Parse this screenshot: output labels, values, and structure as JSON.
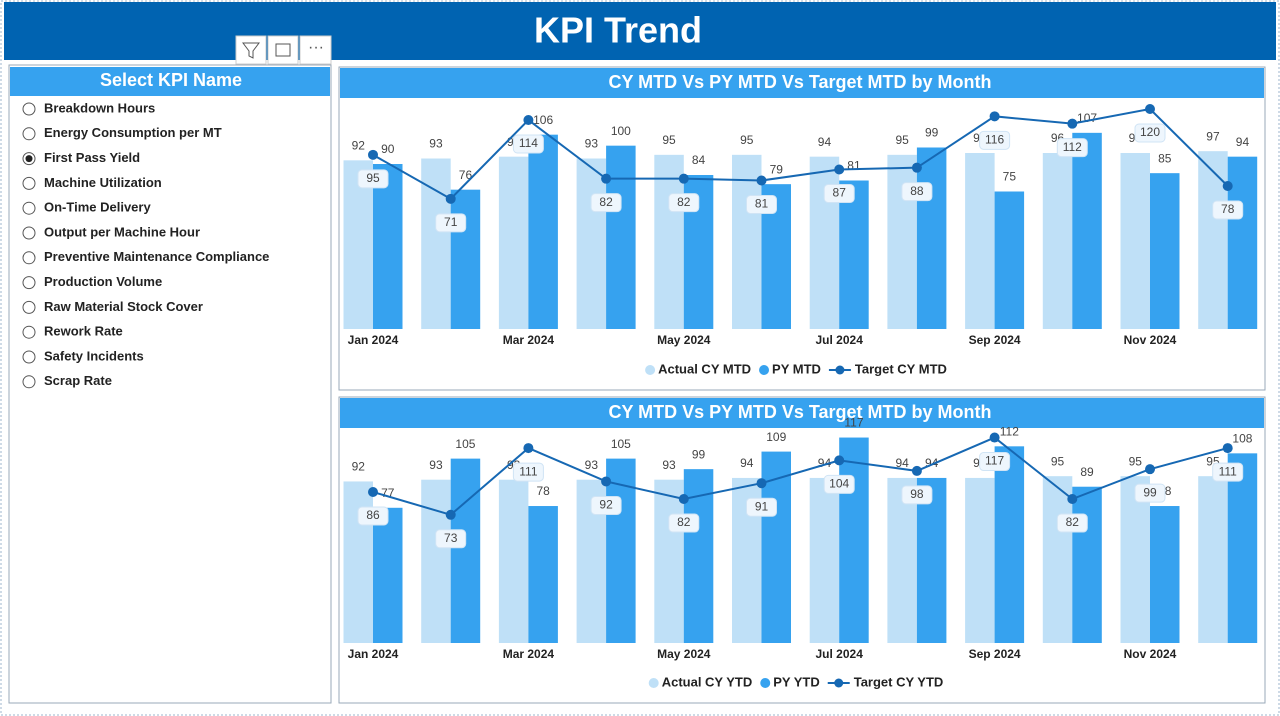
{
  "header": {
    "title": "KPI Trend"
  },
  "slicer": {
    "title": "Select KPI Name",
    "selected": 2,
    "items": [
      "Breakdown Hours",
      "Energy Consumption per MT",
      "First Pass Yield",
      "Machine Utilization",
      "On-Time Delivery",
      "Output per Machine Hour",
      "Preventive Maintenance Compliance",
      "Production Volume",
      "Raw Material Stock Cover",
      "Rework Rate",
      "Safety Incidents",
      "Scrap Rate"
    ]
  },
  "chart_data": [
    {
      "type": "combo",
      "title": "CY MTD Vs PY MTD Vs Target MTD by Month",
      "categories": [
        "Jan 2024",
        null,
        "Mar 2024",
        null,
        "May 2024",
        null,
        "Jul 2024",
        null,
        "Sep 2024",
        null,
        "Nov 2024",
        null
      ],
      "series": [
        {
          "name": "Actual CY MTD",
          "type": "bar",
          "color": "#bfe0f7",
          "values": [
            92,
            93,
            94,
            93,
            95,
            95,
            94,
            95,
            96,
            96,
            96,
            97
          ]
        },
        {
          "name": "PY MTD",
          "type": "bar",
          "color": "#36a2ef",
          "values": [
            90,
            76,
            106,
            100,
            84,
            79,
            81,
            99,
            75,
            107,
            85,
            94
          ]
        },
        {
          "name": "Target CY MTD",
          "type": "line",
          "color": "#1668b3",
          "values": [
            95,
            71,
            114,
            82,
            82,
            81,
            87,
            88,
            116,
            112,
            120,
            78
          ]
        }
      ]
    },
    {
      "type": "combo",
      "title": "CY MTD Vs PY MTD Vs Target MTD by Month",
      "categories": [
        "Jan 2024",
        null,
        "Mar 2024",
        null,
        "May 2024",
        null,
        "Jul 2024",
        null,
        "Sep 2024",
        null,
        "Nov 2024",
        null
      ],
      "series": [
        {
          "name": "Actual CY YTD",
          "type": "bar",
          "color": "#bfe0f7",
          "values": [
            92,
            93,
            93,
            93,
            93,
            94,
            94,
            94,
            94,
            95,
            95,
            95
          ]
        },
        {
          "name": "PY YTD",
          "type": "bar",
          "color": "#36a2ef",
          "values": [
            77,
            105,
            78,
            105,
            99,
            109,
            117,
            94,
            112,
            89,
            78,
            108
          ]
        },
        {
          "name": "Target CY YTD",
          "type": "line",
          "color": "#1668b3",
          "values": [
            86,
            73,
            111,
            92,
            82,
            91,
            104,
            98,
            117,
            82,
            99,
            111
          ]
        }
      ]
    }
  ]
}
